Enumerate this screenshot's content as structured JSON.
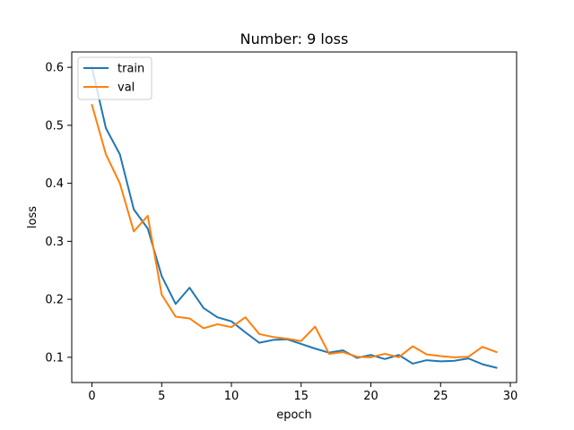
{
  "chart_data": {
    "type": "line",
    "title": "Number: 9 loss",
    "xlabel": "epoch",
    "ylabel": "loss",
    "xlim": [
      -1.45,
      30.45
    ],
    "ylim": [
      0.0565,
      0.6265
    ],
    "xticks": [
      0,
      5,
      10,
      15,
      20,
      25,
      30
    ],
    "yticks": [
      0.1,
      0.2,
      0.3,
      0.4,
      0.5,
      0.6
    ],
    "xtick_labels": [
      "0",
      "5",
      "10",
      "15",
      "20",
      "25",
      "30"
    ],
    "ytick_labels": [
      "0.1",
      "0.2",
      "0.3",
      "0.4",
      "0.5",
      "0.6"
    ],
    "grid": false,
    "legend_position": "upper left",
    "x": [
      0,
      1,
      2,
      3,
      4,
      5,
      6,
      7,
      8,
      9,
      10,
      11,
      12,
      13,
      14,
      15,
      16,
      17,
      18,
      19,
      20,
      21,
      22,
      23,
      24,
      25,
      26,
      27,
      28,
      29
    ],
    "series": [
      {
        "name": "train",
        "color": "#1f77b4",
        "values": [
          0.6,
          0.495,
          0.45,
          0.355,
          0.322,
          0.24,
          0.192,
          0.22,
          0.185,
          0.169,
          0.162,
          0.143,
          0.125,
          0.13,
          0.131,
          0.123,
          0.115,
          0.108,
          0.112,
          0.099,
          0.104,
          0.097,
          0.104,
          0.089,
          0.095,
          0.093,
          0.094,
          0.098,
          0.088,
          0.082
        ]
      },
      {
        "name": "val",
        "color": "#ff7f0e",
        "values": [
          0.535,
          0.45,
          0.4,
          0.317,
          0.344,
          0.208,
          0.17,
          0.167,
          0.15,
          0.157,
          0.152,
          0.169,
          0.14,
          0.135,
          0.132,
          0.128,
          0.153,
          0.106,
          0.109,
          0.101,
          0.1,
          0.106,
          0.1,
          0.119,
          0.105,
          0.102,
          0.1,
          0.101,
          0.118,
          0.109
        ]
      }
    ]
  }
}
